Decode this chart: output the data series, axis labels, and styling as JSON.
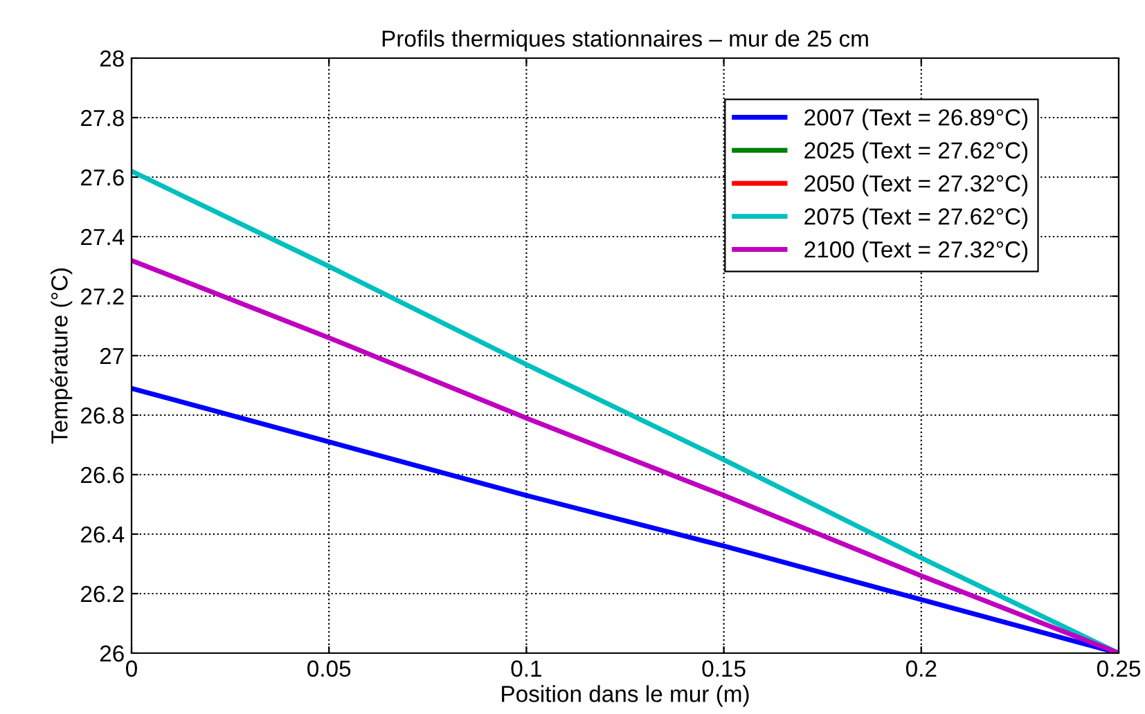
{
  "chart_data": {
    "type": "line",
    "title": "Profils thermiques stationnaires – mur de 25 cm",
    "xlabel": "Position dans le mur (m)",
    "ylabel": "Température (°C)",
    "x": [
      0,
      0.05,
      0.1,
      0.15,
      0.2,
      0.25
    ],
    "series": [
      {
        "name": "2007 (Text = 26.89°C)",
        "color": "#0000ff",
        "values": [
          26.89,
          26.71,
          26.53,
          26.36,
          26.18,
          26
        ]
      },
      {
        "name": "2025 (Text = 27.62°C)",
        "color": "#008000",
        "values": [
          null,
          null,
          null,
          null,
          null,
          null
        ]
      },
      {
        "name": "2050 (Text = 27.32°C)",
        "color": "#ff0000",
        "values": [
          null,
          null,
          null,
          null,
          null,
          null
        ]
      },
      {
        "name": "2075 (Text = 27.62°C)",
        "color": "#00bfbf",
        "values": [
          27.62,
          27.3,
          26.97,
          26.65,
          26.32,
          26
        ]
      },
      {
        "name": "2100 (Text = 27.32°C)",
        "color": "#bf00bf",
        "values": [
          27.32,
          27.06,
          26.79,
          26.53,
          26.26,
          26
        ]
      }
    ],
    "xlim": [
      0,
      0.25
    ],
    "xticks": [
      0,
      0.05,
      0.1,
      0.15,
      0.2,
      0.25
    ],
    "ylim": [
      26,
      28
    ],
    "yticks": [
      26,
      26.2,
      26.4,
      26.6,
      26.8,
      27,
      27.2,
      27.4,
      27.6,
      27.8,
      28
    ],
    "grid": true,
    "legend": "top right",
    "marker": "none",
    "line_style": "solid"
  }
}
